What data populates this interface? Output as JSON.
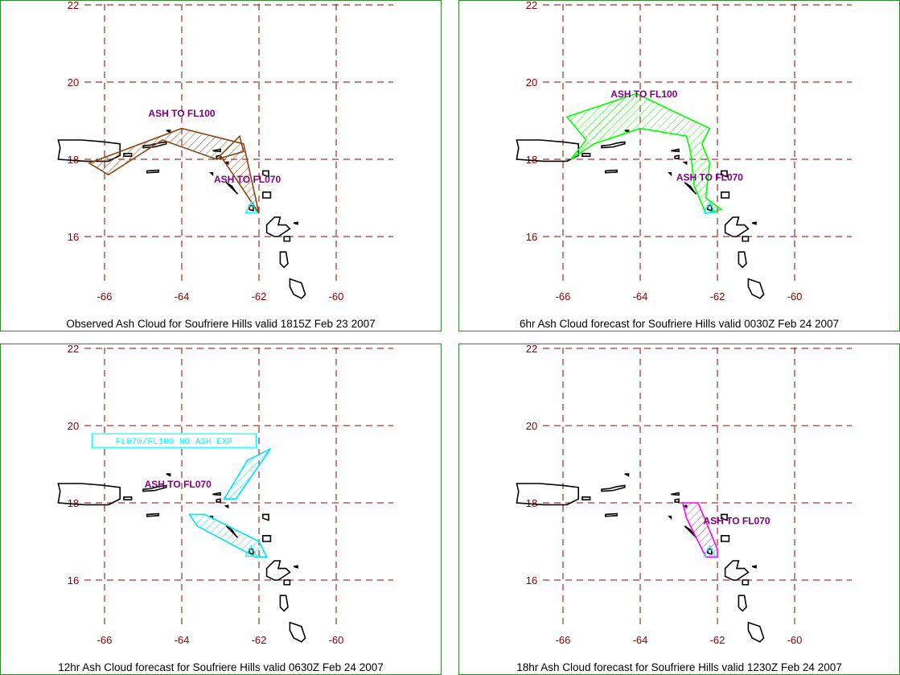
{
  "colors": {
    "grid": "#8b0000",
    "axis_label": "#8b0000",
    "coast": "#000000",
    "annotation": "#800080",
    "frame": "#2e8b2e",
    "source_triangle": "#00ffff"
  },
  "axes": {
    "x_ticks": [
      -66,
      -64,
      -62,
      -60
    ],
    "y_ticks": [
      16,
      18,
      20,
      22
    ],
    "x_labels": [
      "-66",
      "-64",
      "-62",
      "-60"
    ],
    "y_labels": [
      "16",
      "18",
      "20",
      "22"
    ]
  },
  "panels": [
    {
      "caption": "Observed Ash Cloud for Soufriere  Hills valid 1815Z Feb 23 2007",
      "clouds": [
        {
          "color": "#8b4513",
          "polygon": [
            [
              -66.4,
              17.9
            ],
            [
              -64.0,
              18.8
            ],
            [
              -62.4,
              18.4
            ],
            [
              -62.0,
              16.6
            ],
            [
              -62.8,
              17.8
            ],
            [
              -63.0,
              18.1
            ],
            [
              -62.5,
              18.6
            ],
            [
              -62.4,
              18.2
            ],
            [
              -63.1,
              18.0
            ],
            [
              -64.5,
              18.5
            ],
            [
              -65.9,
              17.6
            ]
          ]
        }
      ],
      "labels": [
        {
          "text": "ASH TO FL100",
          "lon": -64.0,
          "lat": 19.1
        },
        {
          "text": "ASH TO FL070",
          "lon": -62.3,
          "lat": 17.4
        }
      ]
    },
    {
      "caption": "6hr Ash Cloud forecast for Soufriere  Hills valid 0030Z Feb 24 2007",
      "clouds": [
        {
          "color": "#00ff00",
          "polygon": [
            [
              -65.9,
              19.1
            ],
            [
              -64.1,
              19.7
            ],
            [
              -62.2,
              18.8
            ],
            [
              -62.4,
              18.4
            ],
            [
              -62.2,
              17.9
            ],
            [
              -62.3,
              17.0
            ],
            [
              -61.9,
              16.7
            ],
            [
              -62.3,
              16.6
            ],
            [
              -62.6,
              17.3
            ],
            [
              -62.7,
              18.2
            ],
            [
              -62.8,
              18.6
            ],
            [
              -64.0,
              18.8
            ],
            [
              -65.2,
              18.4
            ],
            [
              -65.8,
              18.0
            ],
            [
              -65.4,
              18.5
            ]
          ]
        }
      ],
      "labels": [
        {
          "text": "ASH TO FL100",
          "lon": -63.9,
          "lat": 19.6
        },
        {
          "text": "ASH TO FL070",
          "lon": -62.2,
          "lat": 17.45
        }
      ]
    },
    {
      "caption": "12hr Ash Cloud forecast for Soufriere  Hills valid 0630Z Feb 24 2007",
      "clouds": [
        {
          "color": "#00e5ee",
          "polygon": [
            [
              -62.3,
              19.1
            ],
            [
              -61.7,
              19.4
            ],
            [
              -62.6,
              18.1
            ],
            [
              -62.9,
              18.1
            ]
          ]
        },
        {
          "color": "#00e5ee",
          "polygon": [
            [
              -63.8,
              17.7
            ],
            [
              -63.6,
              17.4
            ],
            [
              -62.1,
              16.6
            ],
            [
              -61.8,
              16.6
            ],
            [
              -62.0,
              17.0
            ],
            [
              -63.4,
              17.7
            ]
          ]
        }
      ],
      "boxes": [
        {
          "text": "FL070/FL100 NO ASH EXP",
          "lon": -64.2,
          "lat": 19.6
        }
      ],
      "labels": [
        {
          "text": "ASH TO FL070",
          "lon": -64.1,
          "lat": 18.4
        }
      ]
    },
    {
      "caption": "18hr Ash Cloud forecast for Soufriere  Hills valid 1230Z Feb 24 2007",
      "clouds": [
        {
          "color": "#ff00ff",
          "polygon": [
            [
              -62.9,
              18.0
            ],
            [
              -62.5,
              18.0
            ],
            [
              -62.0,
              16.8
            ],
            [
              -62.0,
              16.6
            ],
            [
              -62.3,
              16.6
            ],
            [
              -62.8,
              17.6
            ]
          ]
        }
      ],
      "labels": [
        {
          "text": "ASH TO FL070",
          "lon": -61.5,
          "lat": 17.45
        }
      ]
    }
  ]
}
